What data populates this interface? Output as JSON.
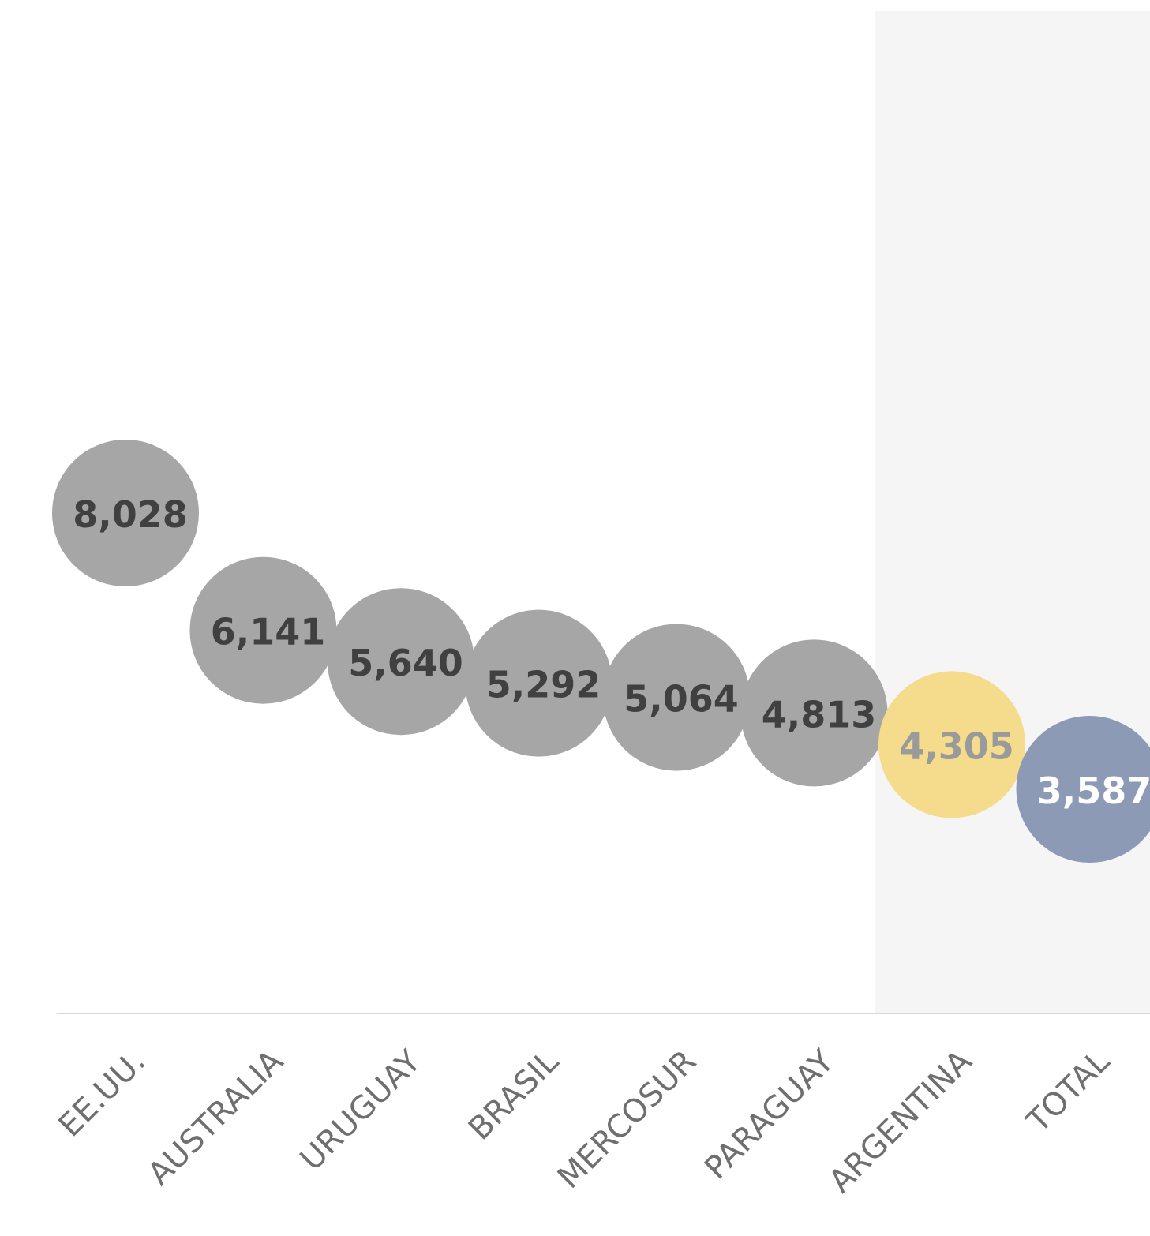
{
  "chart_data": {
    "type": "scatter",
    "title": "",
    "categories": [
      "EE.UU.",
      "AUSTRALIA",
      "URUGUAY",
      "BRASIL",
      "MERCOSUR",
      "PARAGUAY",
      "ARGENTINA",
      "TOTAL"
    ],
    "values": [
      8028,
      6141,
      5640,
      5292,
      5064,
      4813,
      4305,
      3587
    ],
    "labels": [
      "8,028",
      "6,141",
      "5,640",
      "5,292",
      "5,064",
      "4,813",
      "4,305",
      "3,587"
    ],
    "highlight_categories": [
      "ARGENTINA",
      "TOTAL"
    ],
    "xlabel": "",
    "ylabel": "",
    "grid": false,
    "legend": "none",
    "colors": {
      "default_bubble": "#a6a6a6",
      "default_label": "#404040",
      "argentina_bubble": "#f5dc8c",
      "argentina_label": "#9a9a9a",
      "total_bubble": "#8c9ab5",
      "total_label": "#ffffff",
      "highlight_band": "#f5f5f5",
      "axis_line": "#d9d9d9",
      "tick_label": "#6f6f6f"
    }
  }
}
